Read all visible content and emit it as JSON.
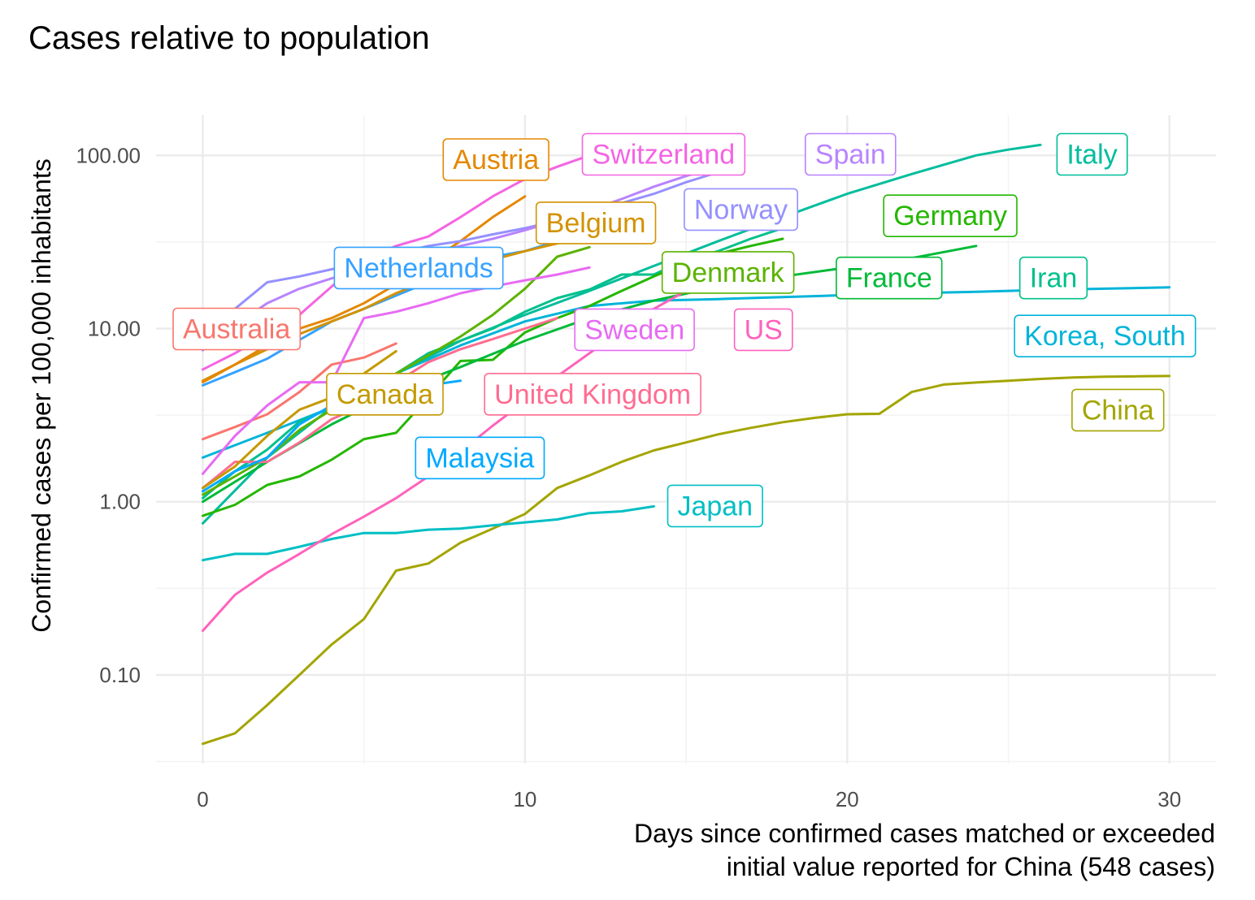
{
  "chart_data": {
    "type": "line",
    "title": "Cases relative to population",
    "xlabel": [
      "Days since confirmed cases matched or exceeded",
      "initial value reported for China (548 cases)"
    ],
    "ylabel": "Confirmed cases per 100,000 inhabitants",
    "y_scale": "log10",
    "xlim": [
      -1.5,
      31.5
    ],
    "ylim": [
      0.03,
      180
    ],
    "x_ticks": [
      0,
      10,
      20,
      30
    ],
    "x_tick_labels": [
      "0",
      "10",
      "20",
      "30"
    ],
    "y_ticks": [
      0.1,
      1,
      10,
      100
    ],
    "y_tick_labels": [
      "0.10",
      "1.00",
      "10.00",
      "100.00"
    ],
    "grid": true,
    "legend": "none (direct labels at line ends)",
    "series": [
      {
        "name": "China",
        "color": "#A3A500",
        "x": [
          0,
          1,
          2,
          3,
          4,
          5,
          6,
          7,
          8,
          9,
          10,
          11,
          12,
          13,
          14,
          15,
          16,
          17,
          18,
          19,
          20,
          21,
          22,
          23,
          24,
          25,
          26,
          27,
          28,
          29,
          30
        ],
        "y": [
          0.04,
          0.046,
          0.067,
          0.1,
          0.15,
          0.21,
          0.4,
          0.44,
          0.58,
          0.7,
          0.85,
          1.2,
          1.42,
          1.7,
          1.98,
          2.2,
          2.45,
          2.67,
          2.88,
          3.05,
          3.2,
          3.22,
          4.3,
          4.75,
          4.88,
          5.0,
          5.12,
          5.22,
          5.27,
          5.3,
          5.32
        ]
      },
      {
        "name": "Japan",
        "color": "#00BFC4",
        "x": [
          0,
          1,
          2,
          3,
          4,
          5,
          6,
          7,
          8,
          9,
          10,
          11,
          12,
          13,
          14
        ],
        "y": [
          0.46,
          0.5,
          0.5,
          0.55,
          0.61,
          0.66,
          0.66,
          0.69,
          0.7,
          0.73,
          0.76,
          0.79,
          0.86,
          0.88,
          0.94
        ]
      },
      {
        "name": "Korea, South",
        "color": "#00B4D9",
        "x": [
          0,
          2,
          4,
          6,
          8,
          10,
          12,
          14,
          16,
          18,
          20,
          22,
          24,
          26,
          28,
          30
        ],
        "y": [
          1.8,
          2.5,
          3.5,
          5.5,
          8.0,
          11.0,
          13.5,
          14.5,
          14.8,
          15.2,
          15.6,
          16.0,
          16.3,
          16.7,
          17.0,
          17.3
        ]
      },
      {
        "name": "Italy",
        "color": "#00BD9C",
        "x": [
          0,
          2,
          4,
          6,
          8,
          10,
          12,
          14,
          16,
          18,
          20,
          22,
          24,
          25,
          26
        ],
        "y": [
          0.75,
          1.8,
          3.5,
          5.5,
          8.5,
          12.0,
          16.5,
          23.0,
          32.0,
          44.0,
          60.0,
          78.0,
          100.0,
          108.0,
          115.0
        ]
      },
      {
        "name": "Iran",
        "color": "#00C08B",
        "x": [
          0,
          1,
          2,
          3,
          4,
          5,
          6,
          7,
          8,
          9,
          10,
          11,
          12,
          13,
          14,
          15,
          16,
          17,
          18
        ],
        "y": [
          1.05,
          1.5,
          2.0,
          2.9,
          3.5,
          4.3,
          5.5,
          7.2,
          8.5,
          10.0,
          12.5,
          15.0,
          16.8,
          20.5,
          20.5,
          25.0,
          28.0,
          33.0,
          38.0
        ]
      },
      {
        "name": "Germany",
        "color": "#24B700",
        "x": [
          0,
          1,
          2,
          3,
          4,
          5,
          6,
          7,
          8,
          9,
          10,
          11,
          12,
          13,
          14,
          15,
          16,
          17,
          18
        ],
        "y": [
          0.83,
          0.96,
          1.25,
          1.4,
          1.75,
          2.3,
          2.5,
          4.0,
          6.5,
          6.6,
          9.5,
          11.5,
          13.5,
          16.5,
          20.0,
          24.0,
          27.0,
          30.0,
          33.0
        ]
      },
      {
        "name": "France",
        "color": "#00BA38",
        "x": [
          0,
          2,
          4,
          6,
          8,
          10,
          12,
          14,
          16,
          18,
          20,
          22,
          24
        ],
        "y": [
          1.0,
          1.7,
          2.8,
          4.3,
          6.0,
          8.5,
          11.5,
          14.5,
          17.5,
          20.0,
          22.5,
          25.5,
          30.0
        ]
      },
      {
        "name": "Denmark",
        "color": "#5BB300",
        "x": [
          0,
          1,
          2,
          3,
          4,
          5,
          6,
          7,
          8,
          9,
          10,
          11,
          12
        ],
        "y": [
          1.1,
          1.4,
          1.8,
          2.6,
          3.4,
          4.5,
          5.5,
          7.0,
          9.0,
          12.0,
          17.0,
          26.0,
          29.5
        ]
      },
      {
        "name": "US",
        "color": "#FF62BC",
        "x": [
          0,
          1,
          2,
          3,
          4,
          5,
          6,
          7,
          8,
          9,
          10,
          11,
          12,
          13,
          14,
          15
        ],
        "y": [
          0.18,
          0.29,
          0.39,
          0.5,
          0.65,
          0.82,
          1.05,
          1.4,
          1.95,
          2.75,
          3.8,
          5.3,
          7.2,
          9.8,
          13.0,
          16.5
        ]
      },
      {
        "name": "United Kingdom",
        "color": "#FF6C91",
        "x": [
          0,
          1,
          2,
          3,
          4,
          5,
          6,
          7,
          8,
          9,
          10,
          11
        ],
        "y": [
          1.2,
          1.7,
          1.7,
          2.2,
          3.0,
          3.6,
          4.9,
          6.4,
          7.6,
          8.7,
          10.0,
          11.5
        ]
      },
      {
        "name": "Malaysia",
        "color": "#00A9FF",
        "x": [
          0,
          1,
          2,
          3,
          4,
          5,
          6,
          7,
          8
        ],
        "y": [
          1.15,
          1.5,
          1.8,
          2.8,
          3.6,
          4.0,
          4.4,
          4.7,
          5.0
        ]
      },
      {
        "name": "Canada",
        "color": "#C49A00",
        "x": [
          0,
          1,
          2,
          3,
          4,
          5,
          6
        ],
        "y": [
          1.2,
          1.6,
          2.4,
          3.4,
          4.0,
          5.5,
          7.4
        ]
      },
      {
        "name": "Australia",
        "color": "#F8766D",
        "x": [
          0,
          1,
          2,
          3,
          4,
          5,
          6
        ],
        "y": [
          2.3,
          2.7,
          3.2,
          4.3,
          6.2,
          6.8,
          8.2
        ]
      },
      {
        "name": "Sweden",
        "color": "#E76BF3",
        "x": [
          0,
          1,
          2,
          3,
          4,
          5,
          6,
          7,
          8,
          9,
          10,
          11,
          12
        ],
        "y": [
          1.45,
          2.4,
          3.6,
          4.9,
          4.9,
          11.5,
          12.5,
          14.0,
          16.0,
          17.5,
          19.0,
          20.5,
          22.5
        ]
      },
      {
        "name": "Netherlands",
        "color": "#35A2FF",
        "x": [
          0,
          1,
          2,
          3,
          4,
          5,
          6,
          7,
          8,
          9,
          10,
          11
        ],
        "y": [
          4.7,
          5.6,
          6.7,
          8.6,
          11.0,
          13.0,
          15.5,
          18.5,
          22.0,
          26.0,
          28.0,
          32.0
        ]
      },
      {
        "name": "Belgium",
        "color": "#D39200",
        "x": [
          0,
          1,
          2,
          3,
          4,
          5,
          6,
          7,
          8,
          9,
          10,
          11,
          12
        ],
        "y": [
          5.0,
          6.2,
          7.6,
          9.3,
          11.0,
          13.0,
          16.0,
          19.0,
          22.5,
          25.0,
          28.0,
          31.0,
          34.0
        ]
      },
      {
        "name": "Austria",
        "color": "#E58700",
        "x": [
          0,
          1,
          2,
          3,
          4,
          5,
          6,
          7,
          8,
          9,
          10
        ],
        "y": [
          4.9,
          6.2,
          8.0,
          10.0,
          11.5,
          14.0,
          18.0,
          24.0,
          32.0,
          44.0,
          58.0
        ]
      },
      {
        "name": "Switzerland",
        "color": "#F564E3",
        "x": [
          0,
          1,
          2,
          3,
          4,
          5,
          6,
          7,
          8,
          9,
          10,
          11,
          12
        ],
        "y": [
          5.8,
          7.2,
          9.3,
          12.0,
          17.5,
          25.0,
          30.0,
          34.0,
          44.0,
          58.0,
          73.0,
          86.0,
          100.0
        ]
      },
      {
        "name": "Norway",
        "color": "#9590FF",
        "x": [
          0,
          1,
          2,
          3,
          4,
          5,
          6,
          7,
          8,
          9,
          10,
          11,
          12,
          13,
          14,
          15,
          16
        ],
        "y": [
          7.5,
          13.0,
          18.5,
          20.0,
          22.0,
          24.0,
          27.0,
          30.0,
          32.0,
          35.0,
          38.0,
          42.0,
          47.0,
          53.0,
          60.0,
          70.0,
          80.0
        ]
      },
      {
        "name": "Spain",
        "color": "#B983FF",
        "x": [
          0,
          1,
          2,
          3,
          4,
          5,
          6,
          7,
          8,
          9,
          10,
          11,
          12,
          13,
          14,
          15,
          16
        ],
        "y": [
          7.5,
          10.5,
          14.0,
          17.0,
          19.5,
          22.0,
          24.5,
          27.0,
          30.0,
          33.0,
          37.0,
          42.0,
          48.0,
          56.0,
          66.0,
          76.0,
          86.0
        ]
      }
    ],
    "labels": [
      {
        "text": "Austria",
        "series": "Austria",
        "x": 9.1,
        "y": 95.0
      },
      {
        "text": "Switzerland",
        "series": "Switzerland",
        "x": 14.3,
        "y": 102.0
      },
      {
        "text": "Spain",
        "series": "Spain",
        "x": 20.1,
        "y": 102.0
      },
      {
        "text": "Italy",
        "series": "Italy",
        "x": 27.6,
        "y": 102.0
      },
      {
        "text": "Norway",
        "series": "Norway",
        "x": 16.7,
        "y": 49.0
      },
      {
        "text": "Belgium",
        "series": "Belgium",
        "x": 12.2,
        "y": 41.0
      },
      {
        "text": "Germany",
        "series": "Germany",
        "x": 23.2,
        "y": 45.0
      },
      {
        "text": "Netherlands",
        "series": "Netherlands",
        "x": 6.7,
        "y": 22.5
      },
      {
        "text": "Denmark",
        "series": "Denmark",
        "x": 16.3,
        "y": 21.2
      },
      {
        "text": "France",
        "series": "France",
        "x": 21.3,
        "y": 19.7
      },
      {
        "text": "Iran",
        "series": "Iran",
        "x": 26.4,
        "y": 19.7
      },
      {
        "text": "Australia",
        "series": "Australia",
        "x": 1.05,
        "y": 10.0
      },
      {
        "text": "Sweden",
        "series": "Sweden",
        "x": 13.4,
        "y": 9.9
      },
      {
        "text": "US",
        "series": "US",
        "x": 17.4,
        "y": 9.9
      },
      {
        "text": "Korea, South",
        "series": "Korea, South",
        "x": 28.0,
        "y": 9.1
      },
      {
        "text": "Canada",
        "series": "Canada",
        "x": 5.65,
        "y": 4.2
      },
      {
        "text": "United Kingdom",
        "series": "United Kingdom",
        "x": 12.1,
        "y": 4.2
      },
      {
        "text": "China",
        "series": "China",
        "x": 28.4,
        "y": 3.4
      },
      {
        "text": "Malaysia",
        "series": "Malaysia",
        "x": 8.6,
        "y": 1.8
      },
      {
        "text": "Japan",
        "series": "Japan",
        "x": 15.9,
        "y": 0.95
      }
    ]
  }
}
